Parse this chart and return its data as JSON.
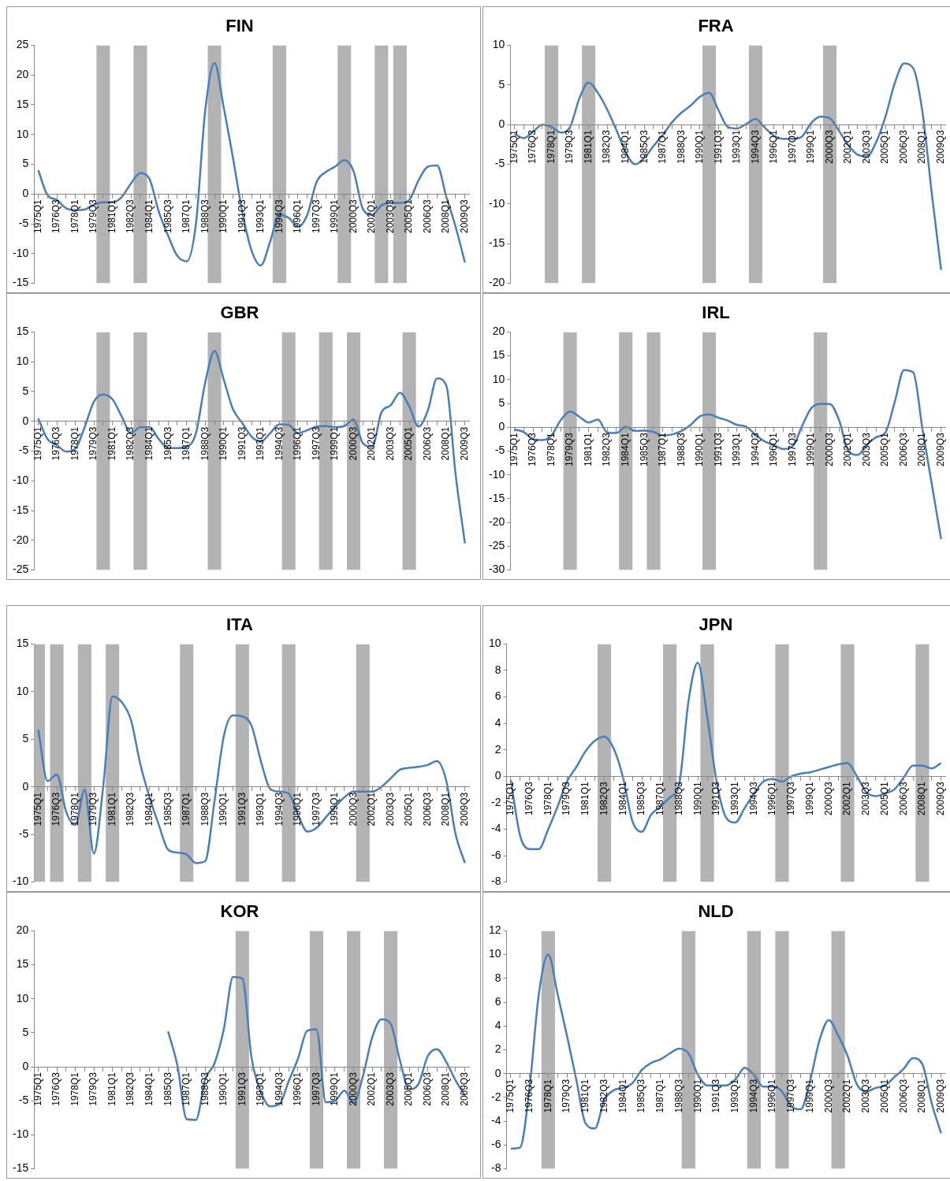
{
  "chart_data": [
    {
      "type": "line",
      "title": "FIN",
      "ylim": [
        -15,
        25
      ],
      "yticks": [
        -15,
        -10,
        -5,
        0,
        5,
        10,
        15,
        20,
        25
      ],
      "categories": [
        "1975Q1",
        null,
        "1976Q3",
        null,
        "1978Q1",
        null,
        "1979Q3",
        null,
        "1981Q1",
        null,
        "1982Q3",
        null,
        "1984Q1",
        null,
        "1985Q3",
        null,
        "1987Q1",
        null,
        "1988Q3",
        null,
        "1990Q1",
        null,
        "1991Q3",
        null,
        "1993Q1",
        null,
        "1994Q3",
        null,
        "1996Q1",
        null,
        "1997Q3",
        null,
        "1999Q1",
        null,
        "2000Q3",
        null,
        "2002Q1",
        null,
        "2003Q3",
        null,
        "2005Q1",
        null,
        "2006Q3",
        null,
        "2008Q1",
        null,
        "2009Q3"
      ],
      "series": [
        {
          "type": "bar",
          "color": "#b3b3b3",
          "values": [
            null,
            null,
            null,
            null,
            null,
            null,
            null,
            40,
            null,
            null,
            null,
            40,
            null,
            null,
            null,
            null,
            null,
            null,
            null,
            40,
            null,
            null,
            null,
            null,
            null,
            null,
            40,
            null,
            null,
            null,
            null,
            null,
            null,
            40,
            null,
            null,
            null,
            40,
            null,
            40,
            null,
            null,
            null,
            null,
            null,
            null,
            null
          ],
          "base": [
            null,
            null,
            null,
            null,
            null,
            null,
            null,
            -15,
            null,
            null,
            null,
            -15,
            null,
            null,
            null,
            null,
            null,
            null,
            null,
            -15,
            null,
            null,
            null,
            null,
            null,
            null,
            -15,
            null,
            null,
            null,
            null,
            null,
            null,
            -15,
            null,
            null,
            null,
            -15,
            null,
            -15,
            null,
            null,
            null,
            null,
            null,
            null,
            null
          ]
        },
        {
          "color": "#4a7ebb",
          "values": [
            4,
            -0.2,
            -1,
            -2.4,
            -2.7,
            -2.6,
            -1.8,
            -1.4,
            -1.4,
            -0.5,
            1.8,
            3.5,
            2.5,
            -3,
            -7,
            -10.4,
            -11.3,
            -5,
            14,
            22,
            14.5,
            6,
            -3,
            -9.5,
            -12,
            -8,
            -3.5,
            -4,
            -5.5,
            -3.5,
            2,
            3.7,
            4.6,
            5.7,
            3.8,
            -2.5,
            -3.5,
            -1.9,
            -1.5,
            -1.5,
            -1,
            2.3,
            4.6,
            4.8,
            -0.5,
            -5.5,
            -11.5
          ]
        }
      ]
    },
    {
      "type": "line",
      "title": "FRA",
      "ylim": [
        -20,
        10
      ],
      "yticks": [
        -20,
        -15,
        -10,
        -5,
        0,
        5,
        10
      ],
      "categories": [
        "1975Q1",
        null,
        "1976Q3",
        null,
        "1978Q1",
        null,
        "1979Q3",
        null,
        "1981Q1",
        null,
        "1982Q3",
        null,
        "1984Q1",
        null,
        "1985Q3",
        null,
        "1987Q1",
        null,
        "1988Q3",
        null,
        "1990Q1",
        null,
        "1991Q3",
        null,
        "1993Q1",
        null,
        "1994Q3",
        null,
        "1996Q1",
        null,
        "1997Q3",
        null,
        "1999Q1",
        null,
        "2000Q3",
        null,
        "2002Q1",
        null,
        "2003Q3",
        null,
        "2005Q1",
        null,
        "2006Q3",
        null,
        "2008Q1",
        null,
        "2009Q3"
      ],
      "series": [
        {
          "type": "bar",
          "color": "#b3b3b3",
          "values": [
            null,
            null,
            null,
            null,
            30,
            null,
            null,
            null,
            30,
            null,
            null,
            null,
            null,
            null,
            null,
            null,
            null,
            null,
            null,
            null,
            null,
            30,
            null,
            null,
            null,
            null,
            30,
            null,
            null,
            null,
            null,
            null,
            null,
            null,
            30,
            null,
            null,
            null,
            null,
            null,
            null,
            null,
            null,
            null,
            null,
            null,
            null
          ],
          "base": [
            null,
            null,
            null,
            null,
            -20,
            null,
            null,
            null,
            -20,
            null,
            null,
            null,
            null,
            null,
            null,
            null,
            null,
            null,
            null,
            null,
            null,
            -20,
            null,
            null,
            null,
            null,
            -20,
            null,
            null,
            null,
            null,
            null,
            null,
            null,
            -20,
            null,
            null,
            null,
            null,
            null,
            null,
            null,
            null,
            null,
            null,
            null,
            null
          ]
        },
        {
          "color": "#4a7ebb",
          "values": [
            -1.2,
            -1.7,
            -0.9,
            0,
            -0.3,
            -1,
            -0.3,
            3.3,
            5.3,
            4,
            1.9,
            -0.7,
            -3.5,
            -5,
            -4.2,
            -2.7,
            -1.3,
            0.3,
            1.5,
            2.4,
            3.5,
            4,
            1.8,
            -0.3,
            -0.5,
            0.1,
            0.7,
            -0.4,
            -1.4,
            -1.8,
            -1.8,
            -1.5,
            0.2,
            1,
            0.8,
            -0.8,
            -2.6,
            -3.8,
            -4,
            -2.2,
            1,
            5.2,
            7.7,
            7.1,
            1.5,
            -8.7,
            -18.3
          ]
        }
      ]
    },
    {
      "type": "line",
      "title": "GBR",
      "ylim": [
        -25,
        15
      ],
      "yticks": [
        -25,
        -20,
        -15,
        -10,
        -5,
        0,
        5,
        10,
        15
      ],
      "categories": [
        "1975Q1",
        null,
        "1976Q3",
        null,
        "1978Q1",
        null,
        "1979Q3",
        null,
        "1981Q1",
        null,
        "1982Q3",
        null,
        "1984Q1",
        null,
        "1985Q3",
        null,
        "1987Q1",
        null,
        "1988Q3",
        null,
        "1990Q1",
        null,
        "1991Q3",
        null,
        "1993Q1",
        null,
        "1994Q3",
        null,
        "1996Q1",
        null,
        "1997Q3",
        null,
        "1999Q1",
        null,
        "2000Q3",
        null,
        "2002Q1",
        null,
        "2003Q3",
        null,
        "2005Q1",
        null,
        "2006Q3",
        null,
        "2008Q1",
        null,
        "2009Q3"
      ],
      "series": [
        {
          "type": "bar",
          "color": "#b3b3b3",
          "values": [
            null,
            null,
            null,
            null,
            null,
            null,
            null,
            40,
            null,
            null,
            null,
            40,
            null,
            null,
            null,
            null,
            null,
            null,
            null,
            40,
            null,
            null,
            null,
            null,
            null,
            null,
            null,
            40,
            null,
            null,
            null,
            40,
            null,
            null,
            40,
            null,
            null,
            null,
            null,
            null,
            40,
            null,
            null,
            null,
            null,
            null,
            null
          ],
          "base": [
            null,
            null,
            null,
            null,
            null,
            null,
            null,
            -25,
            null,
            null,
            null,
            -25,
            null,
            null,
            null,
            null,
            null,
            null,
            null,
            -25,
            null,
            null,
            null,
            null,
            null,
            null,
            null,
            -25,
            null,
            null,
            null,
            -25,
            null,
            null,
            -25,
            null,
            null,
            null,
            null,
            null,
            -25,
            null,
            null,
            null,
            null,
            null,
            null
          ]
        },
        {
          "color": "#4a7ebb",
          "values": [
            0.5,
            -3,
            -4,
            -5.1,
            -4.6,
            -1,
            3.3,
            4.5,
            3.7,
            0.8,
            -2,
            -1,
            -1,
            -3,
            -4.5,
            -4.5,
            -4.3,
            -2,
            6.5,
            11.8,
            7,
            2,
            -0.3,
            -2.6,
            -3.4,
            -2,
            -0.5,
            -0.6,
            -2,
            -1.5,
            -0.9,
            -0.8,
            -1,
            -0.8,
            0.3,
            -3.7,
            -4.3,
            1.5,
            2.7,
            4.8,
            2.5,
            -0.9,
            1.8,
            7.2,
            6,
            -9,
            -20.5
          ]
        }
      ]
    },
    {
      "type": "line",
      "title": "IRL",
      "ylim": [
        -30,
        20
      ],
      "yticks": [
        -30,
        -25,
        -20,
        -15,
        -10,
        -5,
        0,
        5,
        10,
        15,
        20
      ],
      "categories": [
        "1975Q1",
        null,
        "1976Q3",
        null,
        "1978Q1",
        null,
        "1979Q3",
        null,
        "1981Q1",
        null,
        "1982Q3",
        null,
        "1984Q1",
        null,
        "1985Q3",
        null,
        "1987Q1",
        null,
        "1988Q3",
        null,
        "1990Q1",
        null,
        "1991Q3",
        null,
        "1993Q1",
        null,
        "1994Q3",
        null,
        "1996Q1",
        null,
        "1997Q3",
        null,
        "1999Q1",
        null,
        "2000Q3",
        null,
        "2002Q1",
        null,
        "2003Q3",
        null,
        "2005Q1",
        null,
        "2006Q3",
        null,
        "2008Q1",
        null,
        "2009Q3"
      ],
      "series": [
        {
          "type": "bar",
          "color": "#b3b3b3",
          "values": [
            null,
            null,
            null,
            null,
            null,
            null,
            50,
            null,
            null,
            null,
            null,
            null,
            50,
            null,
            null,
            50,
            null,
            null,
            null,
            null,
            null,
            50,
            null,
            null,
            null,
            null,
            null,
            null,
            null,
            null,
            null,
            null,
            null,
            50,
            null,
            null,
            null,
            null,
            null,
            null,
            null,
            null,
            null,
            null,
            null,
            null,
            null
          ],
          "base": [
            null,
            null,
            null,
            null,
            null,
            null,
            -30,
            null,
            null,
            null,
            null,
            null,
            -30,
            null,
            null,
            -30,
            null,
            null,
            null,
            null,
            null,
            -30,
            null,
            null,
            null,
            null,
            null,
            null,
            null,
            null,
            null,
            null,
            null,
            -30,
            null,
            null,
            null,
            null,
            null,
            null,
            null,
            null,
            null,
            null,
            null,
            null,
            null
          ]
        },
        {
          "color": "#4a7ebb",
          "values": [
            -0.5,
            -1,
            -2.5,
            -2.7,
            -1.7,
            1.5,
            3.3,
            2.2,
            1,
            1.6,
            -1.1,
            -1.2,
            0.1,
            -0.8,
            -0.7,
            -1,
            -1.7,
            -1.5,
            -0.8,
            0.5,
            2.3,
            2.7,
            2,
            1.4,
            0.5,
            0.1,
            -1.6,
            -3,
            -3.8,
            -4.6,
            -4,
            0.2,
            4,
            4.9,
            4.9,
            1.5,
            -5,
            -5.8,
            -3.7,
            -2.1,
            -1.1,
            5.3,
            12,
            11.5,
            -0.5,
            -12,
            -23.5
          ]
        }
      ]
    },
    {
      "type": "line",
      "title": "ITA",
      "ylim": [
        -10,
        15
      ],
      "yticks": [
        -10,
        -5,
        0,
        5,
        10,
        15
      ],
      "categories": [
        "1975Q1",
        null,
        "1976Q3",
        null,
        "1978Q1",
        null,
        "1979Q3",
        null,
        "1981Q1",
        null,
        "1982Q3",
        null,
        "1984Q1",
        null,
        "1985Q3",
        null,
        "1987Q1",
        null,
        "1988Q3",
        null,
        "1990Q1",
        null,
        "1991Q3",
        null,
        "1993Q1",
        null,
        "1994Q3",
        null,
        "1996Q1",
        null,
        "1997Q3",
        null,
        "1999Q1",
        null,
        "2000Q3",
        null,
        "2002Q1",
        null,
        "2003Q3",
        null,
        "2005Q1",
        null,
        "2006Q3",
        null,
        "2008Q1",
        null,
        "2009Q3"
      ],
      "series": [
        {
          "type": "bar",
          "color": "#b3b3b3",
          "values": [
            25,
            null,
            25,
            null,
            null,
            25,
            null,
            null,
            25,
            null,
            null,
            null,
            null,
            null,
            null,
            null,
            25,
            null,
            null,
            null,
            null,
            null,
            25,
            null,
            null,
            null,
            null,
            25,
            null,
            null,
            null,
            null,
            null,
            null,
            null,
            25,
            null,
            null,
            null,
            null,
            null,
            null,
            null,
            null,
            null,
            null,
            null
          ],
          "base": [
            -10,
            null,
            -10,
            null,
            null,
            -10,
            null,
            null,
            -10,
            null,
            null,
            null,
            null,
            null,
            null,
            null,
            -10,
            null,
            null,
            null,
            null,
            null,
            -10,
            null,
            null,
            null,
            null,
            -10,
            null,
            null,
            null,
            null,
            null,
            null,
            null,
            -10,
            null,
            null,
            null,
            null,
            null,
            null,
            null,
            null,
            null,
            null,
            null
          ]
        },
        {
          "color": "#4a7ebb",
          "values": [
            6,
            0.6,
            1.3,
            -2.6,
            -4,
            -0.3,
            -7,
            0,
            9.5,
            8.9,
            7,
            2.4,
            -1.1,
            -4,
            -6.6,
            -6.9,
            -7.1,
            -8,
            -7.8,
            -1.5,
            5.3,
            7.5,
            7.4,
            6.4,
            2.7,
            -0.2,
            -0.5,
            -0.7,
            -2.9,
            -4.7,
            -4.3,
            -3.2,
            -2.1,
            -1.1,
            -0.5,
            -0.5,
            -0.5,
            0,
            0.9,
            1.8,
            2,
            2.1,
            2.3,
            2.7,
            0.6,
            -5,
            -8
          ]
        }
      ]
    },
    {
      "type": "line",
      "title": "JPN",
      "ylim": [
        -8,
        10
      ],
      "yticks": [
        -8,
        -6,
        -4,
        -2,
        0,
        2,
        4,
        6,
        8,
        10
      ],
      "categories": [
        "1975Q1",
        null,
        "1976Q3",
        null,
        "1978Q1",
        null,
        "1979Q3",
        null,
        "1981Q1",
        null,
        "1982Q3",
        null,
        "1984Q1",
        null,
        "1985Q3",
        null,
        "1987Q1",
        null,
        "1988Q3",
        null,
        "1990Q1",
        null,
        "1991Q3",
        null,
        "1993Q1",
        null,
        "1994Q3",
        null,
        "1996Q1",
        null,
        "1997Q3",
        null,
        "1999Q1",
        null,
        "2000Q3",
        null,
        "2002Q1",
        null,
        "2003Q3",
        null,
        "2005Q1",
        null,
        "2006Q3",
        null,
        "2008Q1",
        null,
        "2009Q3"
      ],
      "series": [
        {
          "type": "bar",
          "color": "#b3b3b3",
          "values": [
            null,
            null,
            null,
            null,
            null,
            null,
            null,
            null,
            null,
            null,
            18,
            null,
            null,
            null,
            null,
            null,
            null,
            18,
            null,
            null,
            null,
            18,
            null,
            null,
            null,
            null,
            null,
            null,
            null,
            18,
            null,
            null,
            null,
            null,
            null,
            null,
            18,
            null,
            null,
            null,
            null,
            null,
            null,
            null,
            18,
            null,
            null
          ],
          "base": [
            null,
            null,
            null,
            null,
            null,
            null,
            null,
            null,
            null,
            null,
            -8,
            null,
            null,
            null,
            null,
            null,
            null,
            -8,
            null,
            null,
            null,
            -8,
            null,
            null,
            null,
            null,
            null,
            null,
            null,
            -8,
            null,
            null,
            null,
            null,
            null,
            null,
            -8,
            null,
            null,
            null,
            null,
            null,
            null,
            null,
            -8,
            null,
            null
          ]
        },
        {
          "color": "#4a7ebb",
          "values": [
            -0.3,
            -4.5,
            -5.5,
            -5.5,
            -4,
            -2.3,
            -0.4,
            0.7,
            1.9,
            2.7,
            3,
            2.1,
            -0.1,
            -3.4,
            -4.2,
            -2.9,
            -2.3,
            -1.6,
            -0.6,
            5.7,
            8.6,
            4.5,
            -0.4,
            -3.1,
            -3.5,
            -2.4,
            -1.3,
            -0.4,
            -0.2,
            -0.4,
            0,
            0.2,
            0.3,
            0.5,
            0.7,
            0.9,
            1,
            0,
            -1.2,
            -1.5,
            -1.3,
            -1,
            -0.1,
            0.8,
            0.8,
            0.6,
            1
          ]
        }
      ]
    },
    {
      "type": "line",
      "title": "KOR",
      "ylim": [
        -15,
        20
      ],
      "yticks": [
        -15,
        -10,
        -5,
        0,
        5,
        10,
        15,
        20
      ],
      "categories": [
        "1975Q1",
        null,
        "1976Q3",
        null,
        "1978Q1",
        null,
        "1979Q3",
        null,
        "1981Q1",
        null,
        "1982Q3",
        null,
        "1984Q1",
        null,
        "1985Q3",
        null,
        "1987Q1",
        null,
        "1988Q3",
        null,
        "1990Q1",
        null,
        "1991Q3",
        null,
        "1993Q1",
        null,
        "1994Q3",
        null,
        "1996Q1",
        null,
        "1997Q3",
        null,
        "1999Q1",
        null,
        "2000Q3",
        null,
        "2002Q1",
        null,
        "2003Q3",
        null,
        "2005Q1",
        null,
        "2006Q3",
        null,
        "2008Q1",
        null,
        "2009Q3"
      ],
      "series": [
        {
          "type": "bar",
          "color": "#b3b3b3",
          "values": [
            null,
            null,
            null,
            null,
            null,
            null,
            null,
            null,
            null,
            null,
            null,
            null,
            null,
            null,
            null,
            null,
            null,
            null,
            null,
            null,
            null,
            null,
            35,
            null,
            null,
            null,
            null,
            null,
            null,
            null,
            35,
            null,
            null,
            null,
            35,
            null,
            null,
            null,
            35,
            null,
            null,
            null,
            null,
            null,
            null,
            null,
            null
          ],
          "base": [
            null,
            null,
            null,
            null,
            null,
            null,
            null,
            null,
            null,
            null,
            null,
            null,
            null,
            null,
            null,
            null,
            null,
            null,
            null,
            null,
            null,
            null,
            -15,
            null,
            null,
            null,
            null,
            null,
            null,
            null,
            -15,
            null,
            null,
            null,
            -15,
            null,
            null,
            null,
            -15,
            null,
            null,
            null,
            null,
            null,
            null,
            null,
            null
          ]
        },
        {
          "color": "#4a7ebb",
          "values": [
            null,
            null,
            null,
            null,
            null,
            null,
            null,
            null,
            null,
            null,
            null,
            null,
            null,
            null,
            5.2,
            0.2,
            -7.7,
            -7.8,
            -1.8,
            0.5,
            5.5,
            13.2,
            13,
            1.3,
            -3.7,
            -5.8,
            -5.5,
            -2.1,
            1.2,
            5.3,
            5.5,
            -5.2,
            -5,
            -3.5,
            -5.3,
            -1.4,
            4.3,
            7,
            6.3,
            0.9,
            -3.3,
            -2.5,
            1.6,
            2.6,
            0.7,
            -2,
            -4.2
          ]
        }
      ]
    },
    {
      "type": "line",
      "title": "NLD",
      "ylim": [
        -8,
        12
      ],
      "yticks": [
        -8,
        -6,
        -4,
        -2,
        0,
        2,
        4,
        6,
        8,
        10,
        12
      ],
      "categories": [
        "1975Q1",
        null,
        "1976Q3",
        null,
        "1978Q1",
        null,
        "1979Q3",
        null,
        "1981Q1",
        null,
        "1982Q3",
        null,
        "1984Q1",
        null,
        "1985Q3",
        null,
        "1987Q1",
        null,
        "1988Q3",
        null,
        "1990Q1",
        null,
        "1991Q3",
        null,
        "1993Q1",
        null,
        "1994Q3",
        null,
        "1996Q1",
        null,
        "1997Q3",
        null,
        "1999Q1",
        null,
        "2000Q3",
        null,
        "2002Q1",
        null,
        "2003Q3",
        null,
        "2005Q1",
        null,
        "2006Q3",
        null,
        "2008Q1",
        null,
        "2009Q3"
      ],
      "series": [
        {
          "type": "bar",
          "color": "#b3b3b3",
          "values": [
            null,
            null,
            null,
            null,
            20,
            null,
            null,
            null,
            null,
            null,
            null,
            null,
            null,
            null,
            null,
            null,
            null,
            null,
            null,
            20,
            null,
            null,
            null,
            null,
            null,
            null,
            20,
            null,
            null,
            20,
            null,
            null,
            null,
            null,
            null,
            20,
            null,
            null,
            null,
            null,
            null,
            null,
            null,
            null,
            null,
            null,
            null
          ],
          "base": [
            null,
            null,
            null,
            null,
            -8,
            null,
            null,
            null,
            null,
            null,
            null,
            null,
            null,
            null,
            null,
            null,
            null,
            null,
            null,
            -8,
            null,
            null,
            null,
            null,
            null,
            null,
            -8,
            null,
            null,
            -8,
            null,
            null,
            null,
            null,
            null,
            -8,
            null,
            null,
            null,
            null,
            null,
            null,
            null,
            null,
            null,
            null,
            null
          ]
        },
        {
          "color": "#4a7ebb",
          "values": [
            -6.3,
            -6.2,
            -1.2,
            6.7,
            10,
            6.7,
            3.2,
            -0.5,
            -4.2,
            -4.6,
            -2.2,
            -1.4,
            -1.2,
            -0.8,
            0.3,
            0.9,
            1.2,
            1.7,
            2.1,
            1.7,
            -0.1,
            -1,
            -1,
            -1,
            -0.5,
            0.5,
            -0.1,
            -1.1,
            -1.1,
            -1.5,
            -2.8,
            -3,
            -0.6,
            2.8,
            4.5,
            3.2,
            1.5,
            -0.9,
            -1.5,
            -1.2,
            -1,
            -0.3,
            0.4,
            1.3,
            0.8,
            -2.5,
            -5
          ]
        }
      ]
    }
  ]
}
